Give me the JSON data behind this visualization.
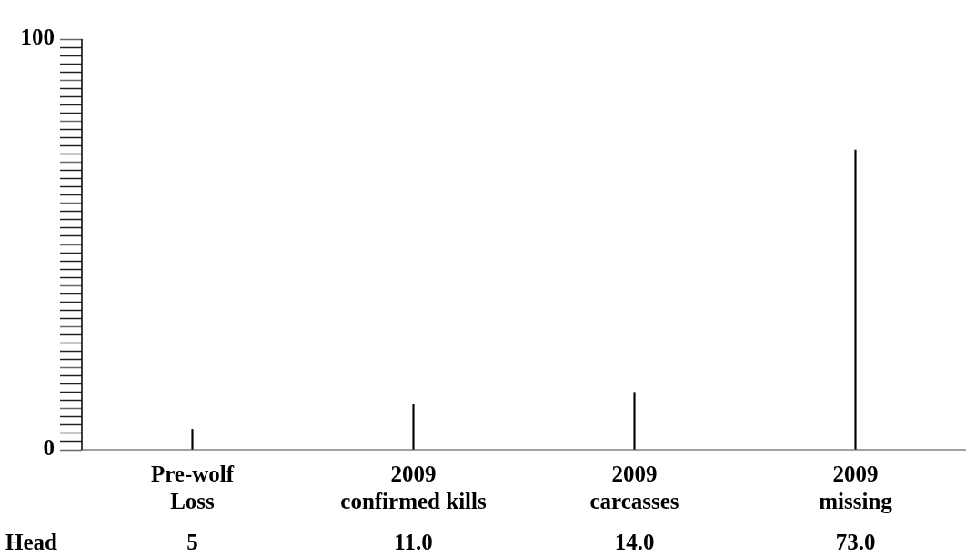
{
  "chart_data": {
    "type": "bar",
    "categories": [
      "Pre-wolf Loss",
      "2009 confirmed kills",
      "2009 carcasses",
      "2009 missing"
    ],
    "values": [
      5,
      11,
      14,
      73
    ],
    "color": "#000000",
    "value_labels": [
      "5",
      "11.0",
      "14.0",
      "73.0"
    ],
    "annotations": [
      "Head"
    ],
    "ylim": [
      0,
      100
    ],
    "yticks": [
      0,
      100
    ]
  }
}
